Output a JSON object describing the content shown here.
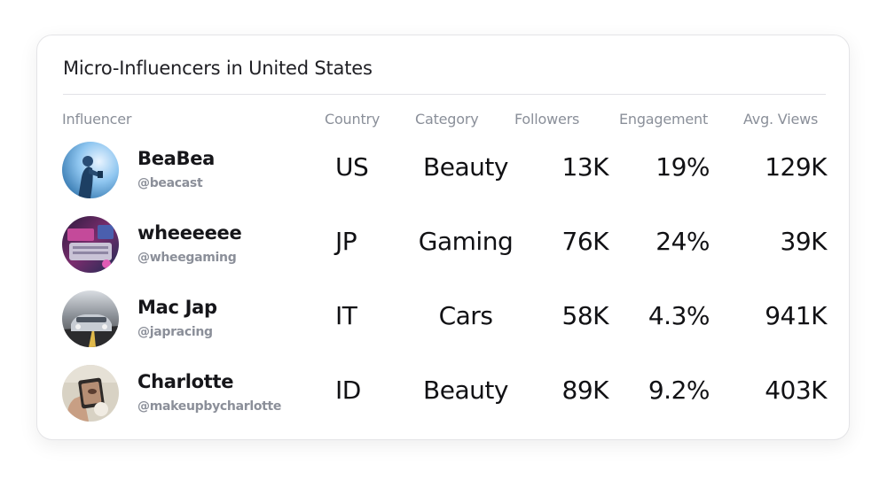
{
  "title": "Micro-Influencers in United States",
  "columns": {
    "influencer": "Influencer",
    "country": "Country",
    "category": "Category",
    "followers": "Followers",
    "engagement": "Engagement",
    "avg_views": "Avg. Views"
  },
  "rows": [
    {
      "name": "BeaBea",
      "handle": "@beacast",
      "country": "US",
      "category": "Beauty",
      "followers": "13K",
      "engagement": "19%",
      "avg_views": "129K"
    },
    {
      "name": "wheeeeee",
      "handle": "@wheegaming",
      "country": "JP",
      "category": "Gaming",
      "followers": "76K",
      "engagement": "24%",
      "avg_views": "39K"
    },
    {
      "name": "Mac Jap",
      "handle": "@japracing",
      "country": "IT",
      "category": "Cars",
      "followers": "58K",
      "engagement": "4.3%",
      "avg_views": "941K"
    },
    {
      "name": "Charlotte",
      "handle": "@makeupbycharlotte",
      "country": "ID",
      "category": "Beauty",
      "followers": "89K",
      "engagement": "9.2%",
      "avg_views": "403K"
    }
  ]
}
